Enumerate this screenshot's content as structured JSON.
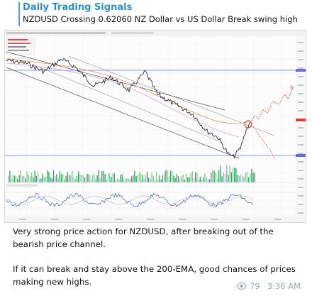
{
  "message": {
    "channel_name": "Daily Trading Signals",
    "reply_preview": "NZDUSD Crossing 0.62060 NZ Dollar vs US Dollar Break swing high",
    "paragraphs": [
      "Very strong price action for NZDUSD, after breaking out of the bearish price channel.",
      "If it can break and stay above the 200-EMA, good chances of prices making new highs."
    ],
    "views": "79",
    "time": "3:36 AM"
  },
  "chart": {
    "icon": "tradingview-chart-screenshot",
    "colors": {
      "price_line": "#1a1a1a",
      "ema_line": "#e0a070",
      "channel_line": "#555555",
      "projection": "#e53935",
      "horizontal_level": "#6b6bd6",
      "volume": "#3fa66a",
      "oscillator": "#3b5fc4"
    }
  }
}
